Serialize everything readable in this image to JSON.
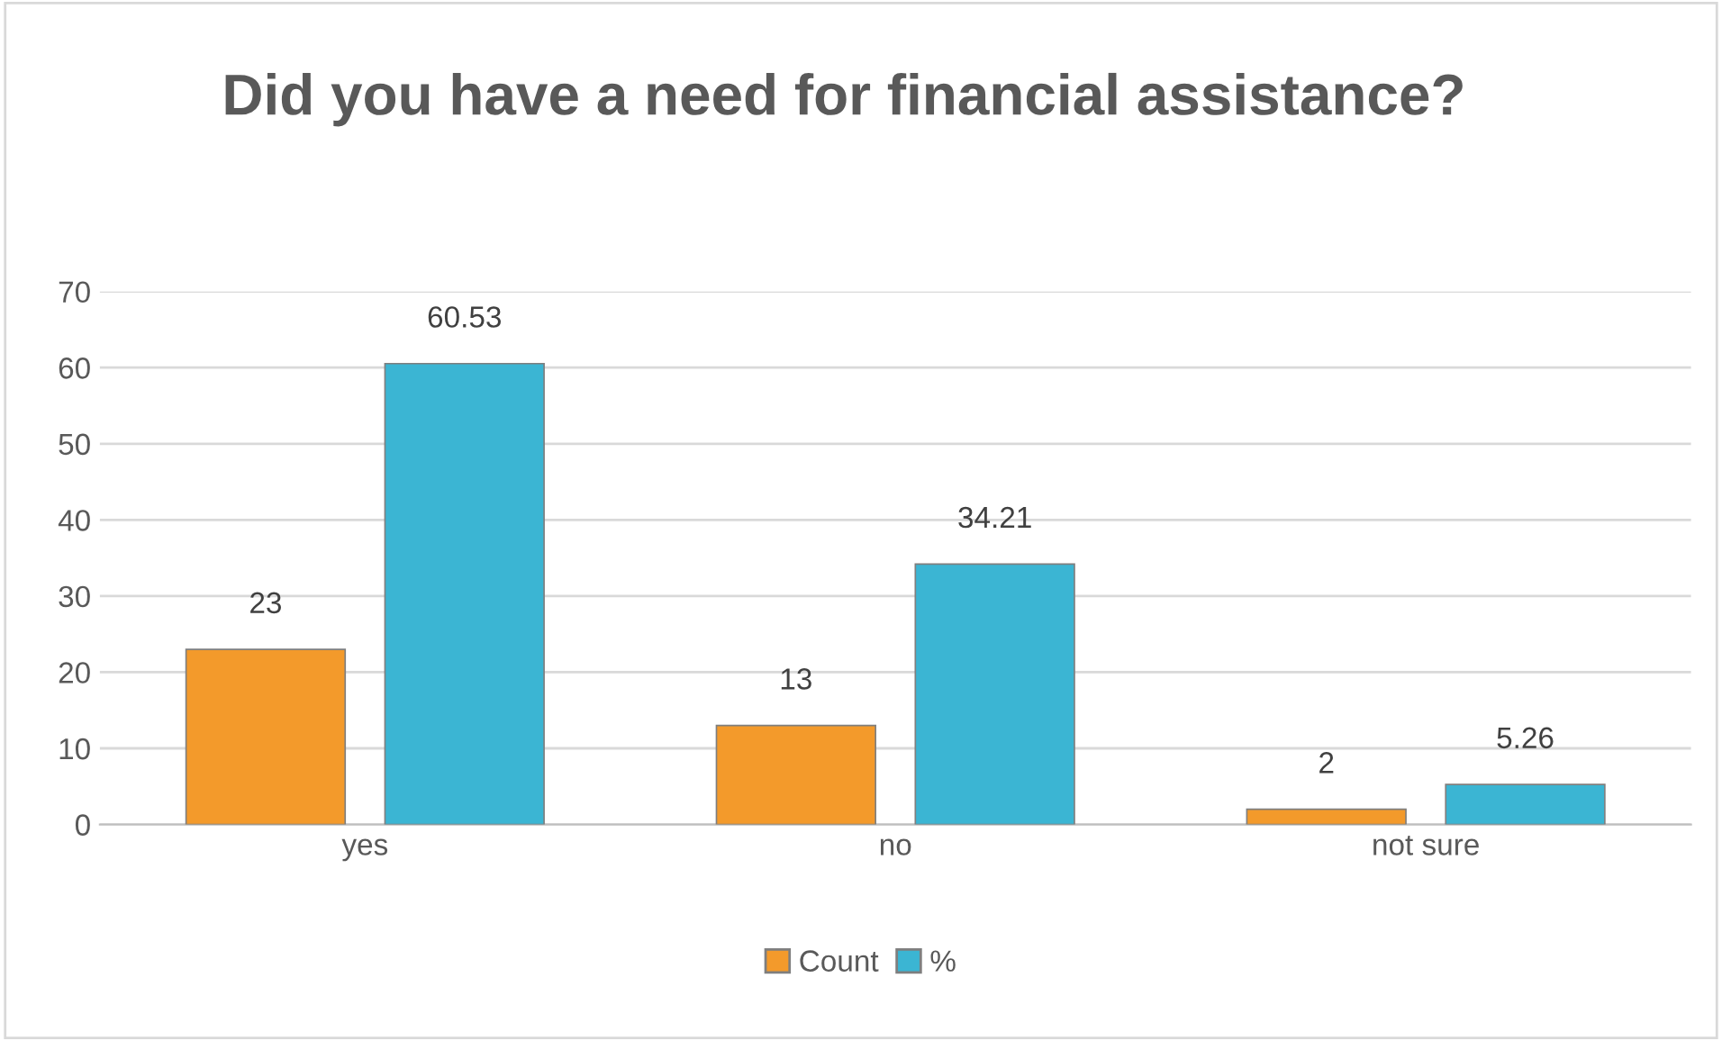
{
  "chart_data": {
    "type": "bar",
    "title": "Did you have a need for financial assistance?",
    "categories": [
      "yes",
      "no",
      "not sure"
    ],
    "series": [
      {
        "name": "Count",
        "color": "#f39a2b",
        "values": [
          23,
          13,
          2
        ]
      },
      {
        "name": "%",
        "color": "#3bb5d3",
        "values": [
          60.53,
          34.21,
          5.26
        ]
      }
    ],
    "ylim": [
      0,
      70
    ],
    "yticks": [
      0,
      10,
      20,
      30,
      40,
      50,
      60,
      70
    ],
    "grid": "y",
    "legend": "bottom",
    "data_labels": true
  }
}
